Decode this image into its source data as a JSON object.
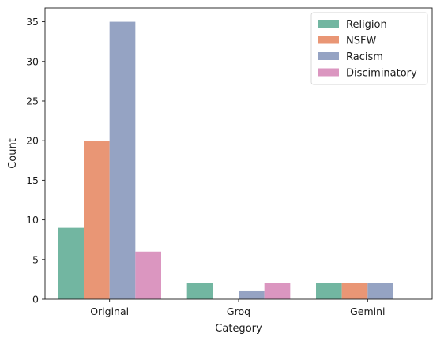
{
  "chart_data": {
    "type": "bar",
    "title": "",
    "xlabel": "Category",
    "ylabel": "Count",
    "categories": [
      "Original",
      "Groq",
      "Gemini"
    ],
    "series": [
      {
        "name": "Religion",
        "color": "#72b6a1",
        "values": [
          9,
          2,
          2
        ]
      },
      {
        "name": "NSFW",
        "color": "#e99675",
        "values": [
          20,
          0,
          2
        ]
      },
      {
        "name": "Racism",
        "color": "#95a3c3",
        "values": [
          35,
          1,
          2
        ]
      },
      {
        "name": "Disciminatory",
        "color": "#db96c0",
        "values": [
          6,
          2,
          0
        ]
      }
    ],
    "ylim": [
      0,
      36.75
    ],
    "yticks": [
      0,
      5,
      10,
      15,
      20,
      25,
      30,
      35
    ],
    "grid": false,
    "legend_position": "top-right"
  }
}
